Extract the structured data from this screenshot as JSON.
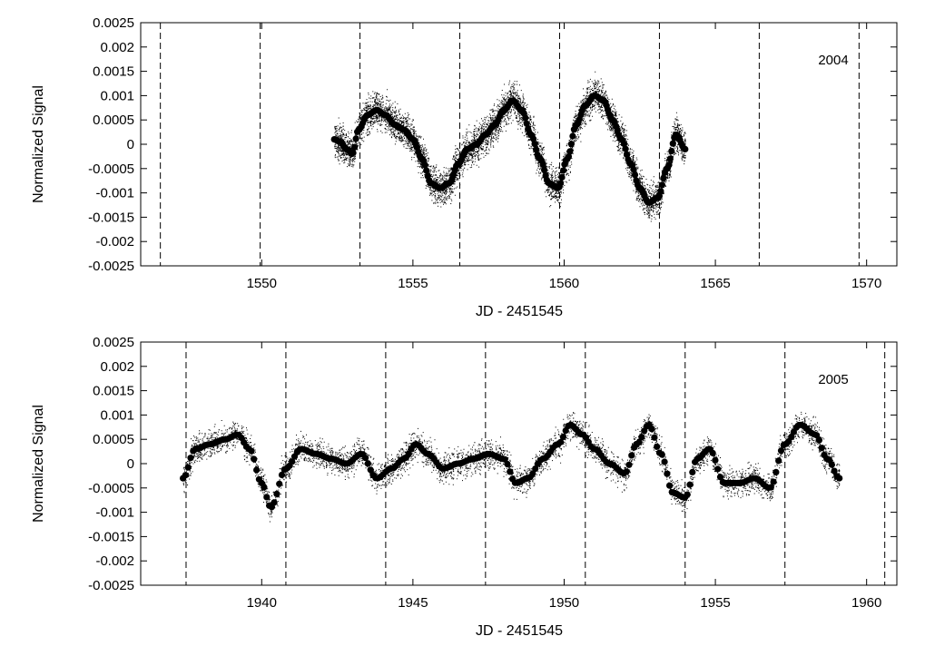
{
  "chart_data": [
    {
      "type": "scatter",
      "panel_label": "2004",
      "xlabel": "JD - 2451545",
      "ylabel": "Normalized Signal",
      "xlim": [
        1546,
        1571
      ],
      "ylim": [
        -0.0025,
        0.0025
      ],
      "x_ticks": [
        1550,
        1555,
        1560,
        1565,
        1570
      ],
      "y_ticks": [
        "0.0025",
        "0.002",
        "0.0015",
        "0.001",
        "0.0005",
        "0",
        "-0.0005",
        "-0.001",
        "-0.0015",
        "-0.002",
        "-0.0025"
      ],
      "x_ticks_mirrored_top": true,
      "y_ticks_mirrored_right": true,
      "grid": false,
      "vertical_dashed_lines_x": [
        1546.65,
        1549.95,
        1553.25,
        1556.55,
        1559.85,
        1563.15,
        1566.45,
        1569.75
      ],
      "data_x_range": [
        1552.4,
        1564.0
      ],
      "raw_scatter_amplitude": 0.00055,
      "smoothed_series": {
        "x": [
          1552.4,
          1552.6,
          1552.8,
          1553.0,
          1553.2,
          1553.5,
          1553.8,
          1554.1,
          1554.4,
          1554.7,
          1555.0,
          1555.3,
          1555.6,
          1555.9,
          1556.2,
          1556.5,
          1556.8,
          1557.1,
          1557.4,
          1557.7,
          1558.0,
          1558.3,
          1558.6,
          1558.9,
          1559.2,
          1559.5,
          1559.8,
          1560.1,
          1560.4,
          1560.7,
          1561.0,
          1561.3,
          1561.6,
          1561.9,
          1562.2,
          1562.5,
          1562.8,
          1563.1,
          1563.4,
          1563.7,
          1564.0
        ],
        "y": [
          0.0001,
          5e-05,
          -0.0001,
          -0.0002,
          0.0003,
          0.0006,
          0.0007,
          0.0006,
          0.0004,
          0.0003,
          0.0001,
          -0.0003,
          -0.0008,
          -0.0009,
          -0.0008,
          -0.0004,
          -0.0001,
          0.0,
          0.0002,
          0.0004,
          0.0007,
          0.0009,
          0.0007,
          0.0002,
          -0.0003,
          -0.0008,
          -0.0009,
          -0.0003,
          0.0004,
          0.0008,
          0.001,
          0.0009,
          0.0005,
          0.0001,
          -0.0004,
          -0.0009,
          -0.0012,
          -0.0011,
          -0.0005,
          0.0002,
          -0.0001
        ]
      }
    },
    {
      "type": "scatter",
      "panel_label": "2005",
      "xlabel": "JD - 2451545",
      "ylabel": "Normalized Signal",
      "xlim": [
        1936,
        1961
      ],
      "ylim": [
        -0.0025,
        0.0025
      ],
      "x_ticks": [
        1940,
        1945,
        1950,
        1955,
        1960
      ],
      "y_ticks": [
        "0.0025",
        "0.002",
        "0.0015",
        "0.001",
        "0.0005",
        "0",
        "-0.0005",
        "-0.001",
        "-0.0015",
        "-0.002",
        "-0.0025"
      ],
      "x_ticks_mirrored_top": true,
      "y_ticks_mirrored_right": true,
      "grid": false,
      "vertical_dashed_lines_x": [
        1937.5,
        1940.8,
        1944.1,
        1947.4,
        1950.7,
        1954.0,
        1957.3,
        1960.6
      ],
      "data_x_range": [
        1937.4,
        1959.1
      ],
      "raw_scatter_amplitude": 0.00045,
      "smoothed_series": {
        "x": [
          1937.4,
          1937.8,
          1938.3,
          1938.8,
          1939.2,
          1939.6,
          1940.0,
          1940.3,
          1940.8,
          1941.3,
          1941.8,
          1942.3,
          1942.8,
          1943.3,
          1943.8,
          1944.3,
          1944.7,
          1945.1,
          1945.5,
          1946.0,
          1946.5,
          1947.0,
          1947.5,
          1948.0,
          1948.4,
          1948.8,
          1949.3,
          1949.8,
          1950.2,
          1950.6,
          1951.0,
          1951.5,
          1952.0,
          1952.4,
          1952.8,
          1953.2,
          1953.6,
          1954.0,
          1954.4,
          1954.8,
          1955.3,
          1955.8,
          1956.3,
          1956.8,
          1957.3,
          1957.8,
          1958.3,
          1958.7,
          1959.1
        ],
        "y": [
          -0.0003,
          0.0003,
          0.0004,
          0.0005,
          0.0006,
          0.0003,
          -0.0004,
          -0.0009,
          -0.0001,
          0.0003,
          0.0002,
          0.0001,
          0.0,
          0.0002,
          -0.0003,
          -0.0001,
          0.0001,
          0.0004,
          0.0002,
          -0.0001,
          0.0,
          0.0001,
          0.0002,
          0.0001,
          -0.0004,
          -0.0003,
          0.0001,
          0.0004,
          0.0008,
          0.0006,
          0.0003,
          0.0,
          -0.0002,
          0.0004,
          0.0008,
          0.0002,
          -0.0006,
          -0.0007,
          0.0001,
          0.0003,
          -0.0004,
          -0.0004,
          -0.0003,
          -0.0005,
          0.0004,
          0.0008,
          0.0006,
          0.0001,
          -0.0003
        ]
      }
    }
  ]
}
